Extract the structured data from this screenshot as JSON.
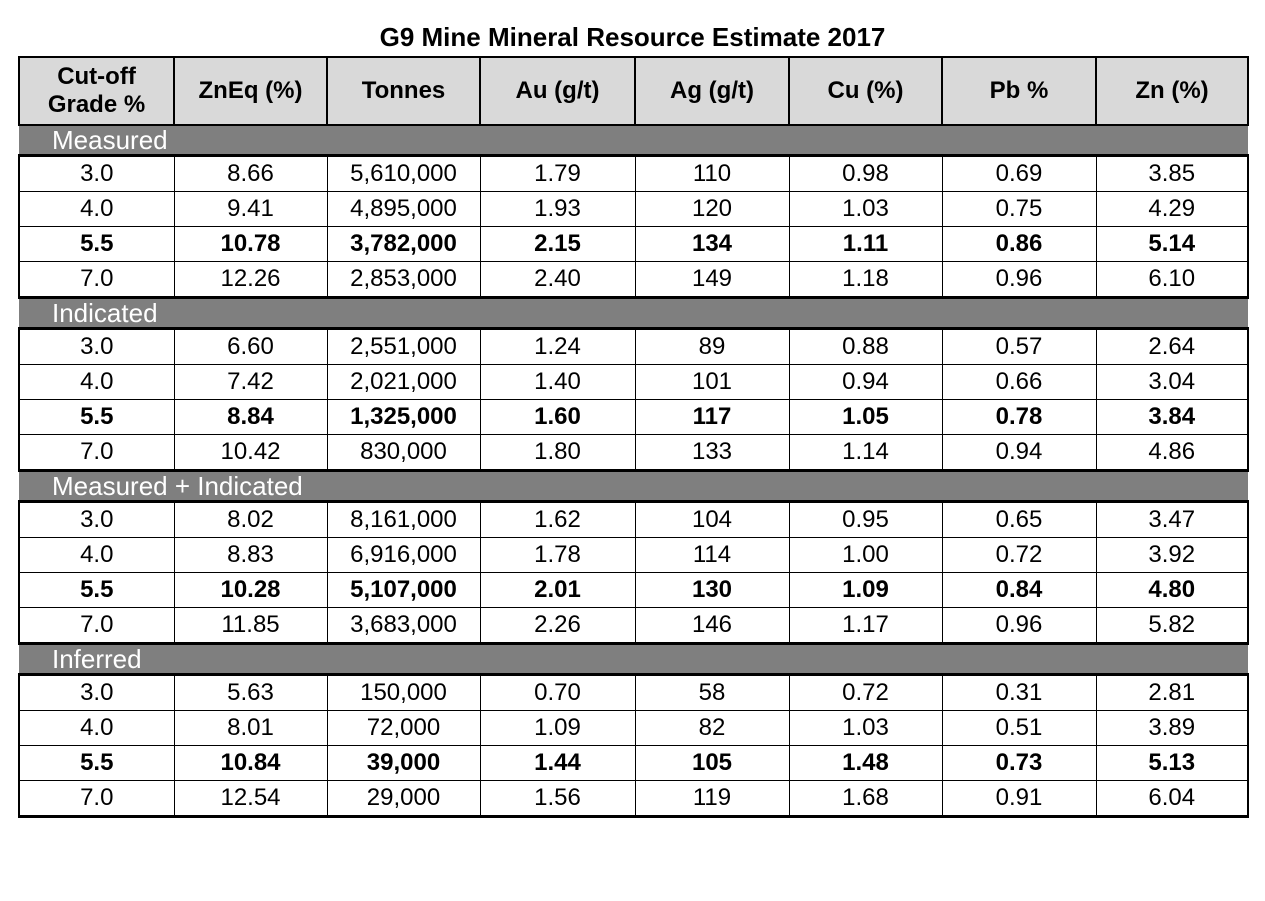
{
  "title": "G9 Mine Mineral Resource Estimate 2017",
  "headers": [
    "Cut-off Grade %",
    "ZnEq (%)",
    "Tonnes",
    "Au (g/t)",
    "Ag (g/t)",
    "Cu (%)",
    "Pb %",
    "Zn (%)"
  ],
  "sections": [
    {
      "name": "Measured",
      "rows": [
        {
          "bold": false,
          "cells": [
            "3.0",
            "8.66",
            "5,610,000",
            "1.79",
            "110",
            "0.98",
            "0.69",
            "3.85"
          ]
        },
        {
          "bold": false,
          "cells": [
            "4.0",
            "9.41",
            "4,895,000",
            "1.93",
            "120",
            "1.03",
            "0.75",
            "4.29"
          ]
        },
        {
          "bold": true,
          "cells": [
            "5.5",
            "10.78",
            "3,782,000",
            "2.15",
            "134",
            "1.11",
            "0.86",
            "5.14"
          ]
        },
        {
          "bold": false,
          "cells": [
            "7.0",
            "12.26",
            "2,853,000",
            "2.40",
            "149",
            "1.18",
            "0.96",
            "6.10"
          ]
        }
      ]
    },
    {
      "name": "Indicated",
      "rows": [
        {
          "bold": false,
          "cells": [
            "3.0",
            "6.60",
            "2,551,000",
            "1.24",
            "89",
            "0.88",
            "0.57",
            "2.64"
          ]
        },
        {
          "bold": false,
          "cells": [
            "4.0",
            "7.42",
            "2,021,000",
            "1.40",
            "101",
            "0.94",
            "0.66",
            "3.04"
          ]
        },
        {
          "bold": true,
          "cells": [
            "5.5",
            "8.84",
            "1,325,000",
            "1.60",
            "117",
            "1.05",
            "0.78",
            "3.84"
          ]
        },
        {
          "bold": false,
          "cells": [
            "7.0",
            "10.42",
            "830,000",
            "1.80",
            "133",
            "1.14",
            "0.94",
            "4.86"
          ]
        }
      ]
    },
    {
      "name": "Measured + Indicated",
      "rows": [
        {
          "bold": false,
          "cells": [
            "3.0",
            "8.02",
            "8,161,000",
            "1.62",
            "104",
            "0.95",
            "0.65",
            "3.47"
          ]
        },
        {
          "bold": false,
          "cells": [
            "4.0",
            "8.83",
            "6,916,000",
            "1.78",
            "114",
            "1.00",
            "0.72",
            "3.92"
          ]
        },
        {
          "bold": true,
          "cells": [
            "5.5",
            "10.28",
            "5,107,000",
            "2.01",
            "130",
            "1.09",
            "0.84",
            "4.80"
          ]
        },
        {
          "bold": false,
          "cells": [
            "7.0",
            "11.85",
            "3,683,000",
            "2.26",
            "146",
            "1.17",
            "0.96",
            "5.82"
          ]
        }
      ]
    },
    {
      "name": "Inferred",
      "rows": [
        {
          "bold": false,
          "cells": [
            "3.0",
            "5.63",
            "150,000",
            "0.70",
            "58",
            "0.72",
            "0.31",
            "2.81"
          ]
        },
        {
          "bold": false,
          "cells": [
            "4.0",
            "8.01",
            "72,000",
            "1.09",
            "82",
            "1.03",
            "0.51",
            "3.89"
          ]
        },
        {
          "bold": true,
          "cells": [
            "5.5",
            "10.84",
            "39,000",
            "1.44",
            "105",
            "1.48",
            "0.73",
            "5.13"
          ]
        },
        {
          "bold": false,
          "cells": [
            "7.0",
            "12.54",
            "29,000",
            "1.56",
            "119",
            "1.68",
            "0.91",
            "6.04"
          ]
        }
      ]
    }
  ],
  "colors": {
    "header_bg": "#d9d9d9",
    "section_bg": "#7f7f7f",
    "section_text": "#ffffff"
  }
}
